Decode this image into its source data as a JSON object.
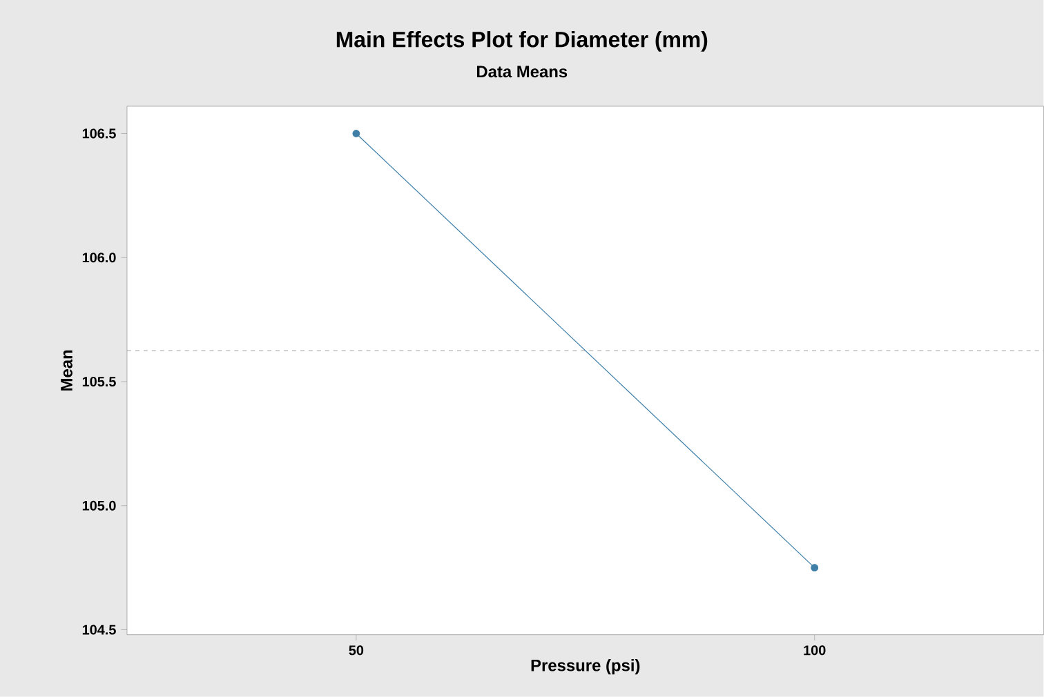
{
  "chart_data": {
    "type": "line",
    "title": "Main Effects Plot for Diameter (mm)",
    "subtitle": "Data Means",
    "xlabel": "Pressure (psi)",
    "ylabel": "Mean",
    "categories": [
      "50",
      "100"
    ],
    "series": [
      {
        "color": "#3f7fa8",
        "values": [
          106.5,
          104.75
        ]
      }
    ],
    "marker": "circle",
    "line_style": "solid",
    "ylim": [
      104.48,
      106.61
    ],
    "yticks": [
      {
        "value": 104.5,
        "label": "104.5"
      },
      {
        "value": 105,
        "label": "105.0"
      },
      {
        "value": 105.5,
        "label": "105.5"
      },
      {
        "value": 106,
        "label": "106.0"
      },
      {
        "value": 106.5,
        "label": "106.5"
      }
    ],
    "ref_lines": [
      {
        "axis": "y",
        "value": 105.625,
        "color": "#a0a0a0",
        "line_style": "dashed"
      }
    ]
  }
}
